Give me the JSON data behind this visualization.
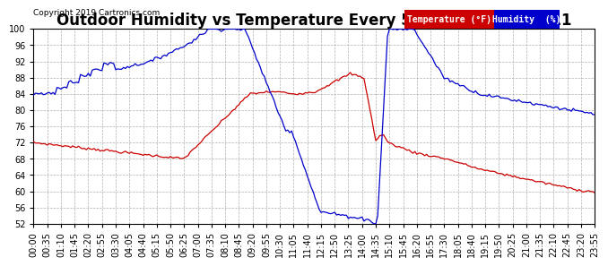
{
  "title": "Outdoor Humidity vs Temperature Every 5 Minutes 20190911",
  "copyright": "Copyright 2019 Cartronics.com",
  "legend_temp": "Temperature (°F)",
  "legend_hum": "Humidity  (%)",
  "temp_color": "#cc0000",
  "hum_color": "#0000cc",
  "temp_legend_bg": "#cc0000",
  "hum_legend_bg": "#0000cc",
  "ymin": 52.0,
  "ymax": 100.0,
  "yticks": [
    52.0,
    56.0,
    60.0,
    64.0,
    68.0,
    72.0,
    76.0,
    80.0,
    84.0,
    88.0,
    92.0,
    96.0,
    100.0
  ],
  "bg_color": "#ffffff",
  "grid_color": "#b0b0b0",
  "title_fontsize": 12,
  "label_fontsize": 7.5,
  "tick_fontsize": 7,
  "x_labels": [
    "00:00",
    "00:35",
    "01:10",
    "01:45",
    "02:20",
    "02:55",
    "03:30",
    "04:05",
    "04:40",
    "05:15",
    "05:50",
    "06:25",
    "07:00",
    "07:35",
    "08:10",
    "08:45",
    "09:20",
    "09:55",
    "10:30",
    "11:05",
    "11:40",
    "12:15",
    "12:50",
    "13:25",
    "14:00",
    "14:35",
    "15:10",
    "15:45",
    "16:20",
    "16:55",
    "17:30",
    "18:05",
    "18:40",
    "19:15",
    "19:50",
    "20:25",
    "21:00",
    "21:35",
    "22:10",
    "22:45",
    "23:20",
    "23:55"
  ],
  "n_points": 288
}
